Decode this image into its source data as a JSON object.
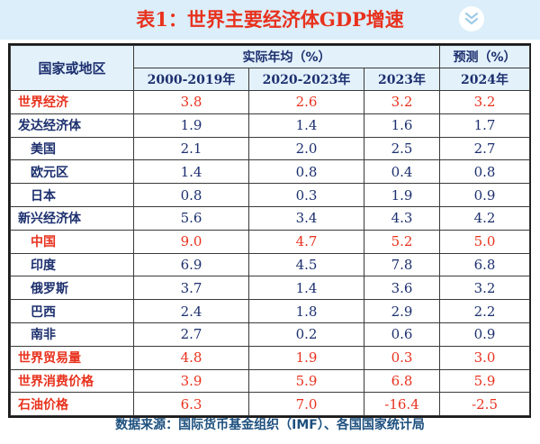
{
  "title": "表1：世界主要经济体GDP增速",
  "header": {
    "region_label": "国家或地区",
    "actual_label": "实际年均（%）",
    "forecast_label": "预测（%）",
    "years": [
      "2000-2019年",
      "2020-2023年",
      "2023年",
      "2024年"
    ]
  },
  "rows": [
    {
      "name": "世界经济",
      "values": [
        "3.8",
        "2.6",
        "3.2",
        "3.2"
      ]
    },
    {
      "name": "发达经济体",
      "values": [
        "1.9",
        "1.4",
        "1.6",
        "1.7"
      ]
    },
    {
      "name": "美国",
      "values": [
        "2.1",
        "2.0",
        "2.5",
        "2.7"
      ]
    },
    {
      "name": "欧元区",
      "values": [
        "1.4",
        "0.8",
        "0.4",
        "0.8"
      ]
    },
    {
      "name": "日本",
      "values": [
        "0.8",
        "0.3",
        "1.9",
        "0.9"
      ]
    },
    {
      "name": "新兴经济体",
      "values": [
        "5.6",
        "3.4",
        "4.3",
        "4.2"
      ]
    },
    {
      "name": "中国",
      "values": [
        "9.0",
        "4.7",
        "5.2",
        "5.0"
      ]
    },
    {
      "name": "印度",
      "values": [
        "6.9",
        "4.5",
        "7.8",
        "6.8"
      ]
    },
    {
      "name": "俄罗斯",
      "values": [
        "3.7",
        "1.4",
        "3.6",
        "3.2"
      ]
    },
    {
      "name": "巴西",
      "values": [
        "2.4",
        "1.8",
        "2.9",
        "2.2"
      ]
    },
    {
      "name": "南非",
      "values": [
        "2.7",
        "0.2",
        "0.6",
        "0.9"
      ]
    },
    {
      "name": "世界贸易量",
      "values": [
        "4.8",
        "1.9",
        "0.3",
        "3.0"
      ]
    },
    {
      "name": "世界消费价格",
      "values": [
        "3.9",
        "5.9",
        "6.8",
        "5.9"
      ]
    },
    {
      "name": "石油价格",
      "values": [
        "6.3",
        "7.0",
        "-16.4",
        "-2.5"
      ]
    }
  ],
  "source": "数据来源：国际货币基金组织（IMF）、各国国家统计局",
  "colors": {
    "red": "#e8321e",
    "navy": "#1c2f6e",
    "header_bg": "#e3f1fb",
    "banner_bg": "#dbeefa"
  },
  "icons": {
    "collapse": "double-chevron-down-icon"
  }
}
